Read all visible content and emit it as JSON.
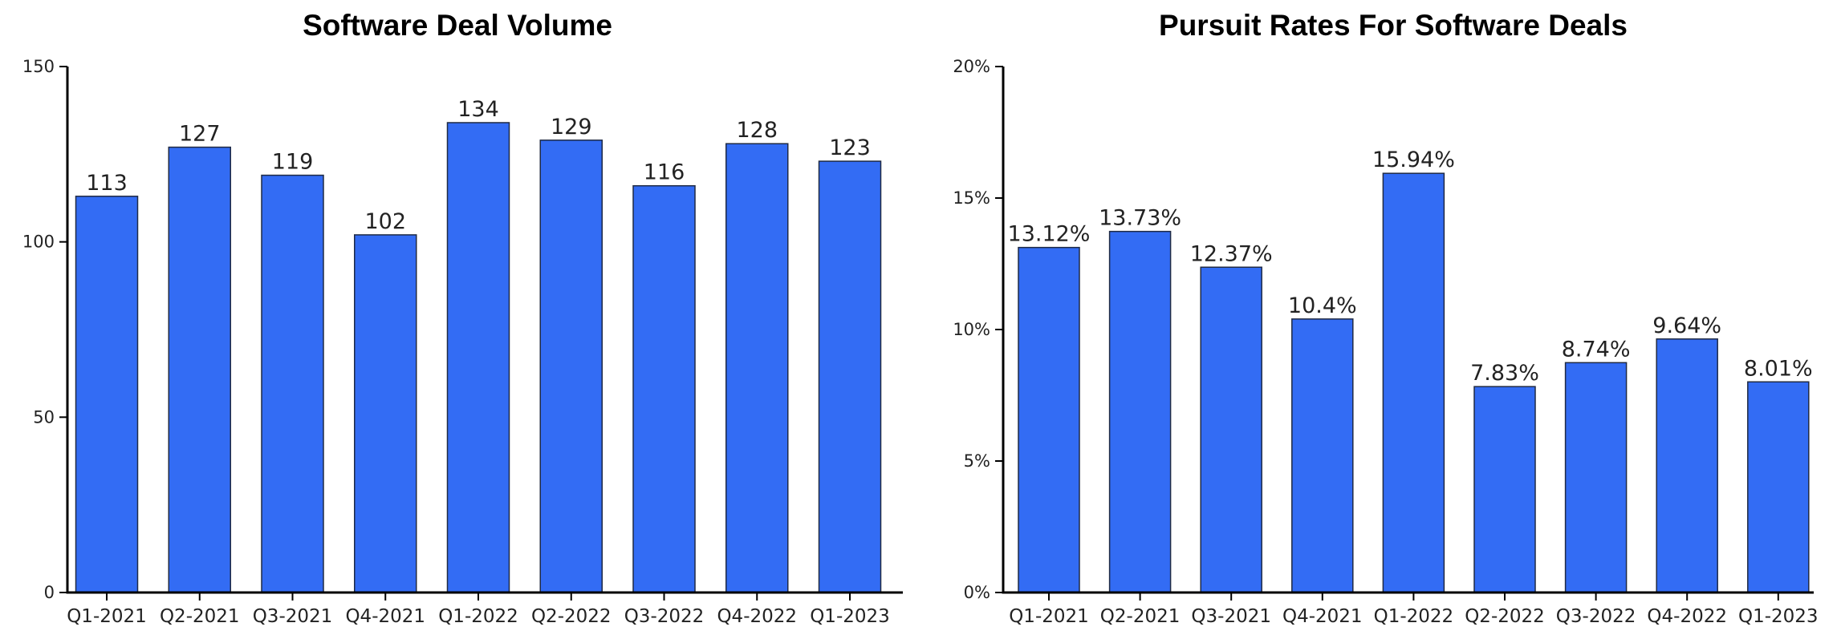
{
  "chart_data": [
    {
      "type": "bar",
      "title": "Software Deal Volume",
      "xlabel": "",
      "ylabel": "",
      "categories": [
        "Q1-2021",
        "Q2-2021",
        "Q3-2021",
        "Q4-2021",
        "Q1-2022",
        "Q2-2022",
        "Q3-2022",
        "Q4-2022",
        "Q1-2023"
      ],
      "values": [
        113,
        127,
        119,
        102,
        134,
        129,
        116,
        128,
        123
      ],
      "value_labels": [
        "113",
        "127",
        "119",
        "102",
        "134",
        "129",
        "116",
        "128",
        "123"
      ],
      "ylim": [
        0,
        150
      ],
      "yticks": [
        0,
        50,
        100,
        150
      ],
      "ytick_labels": [
        "0",
        "50",
        "100",
        "150"
      ],
      "grid": false,
      "legend": "none",
      "bar_color": "#336cf4"
    },
    {
      "type": "bar",
      "title": "Pursuit Rates For Software Deals",
      "xlabel": "",
      "ylabel": "",
      "categories": [
        "Q1-2021",
        "Q2-2021",
        "Q3-2021",
        "Q4-2021",
        "Q1-2022",
        "Q2-2022",
        "Q3-2022",
        "Q4-2022",
        "Q1-2023"
      ],
      "values": [
        13.12,
        13.73,
        12.37,
        10.4,
        15.94,
        7.83,
        8.74,
        9.64,
        8.01
      ],
      "value_labels": [
        "13.12%",
        "13.73%",
        "12.37%",
        "10.4%",
        "15.94%",
        "7.83%",
        "8.74%",
        "9.64%",
        "8.01%"
      ],
      "ylim": [
        0,
        20
      ],
      "yticks": [
        0,
        5,
        10,
        15,
        20
      ],
      "ytick_labels": [
        "0%",
        "5%",
        "10%",
        "15%",
        "20%"
      ],
      "grid": false,
      "legend": "none",
      "bar_color": "#336cf4"
    }
  ]
}
